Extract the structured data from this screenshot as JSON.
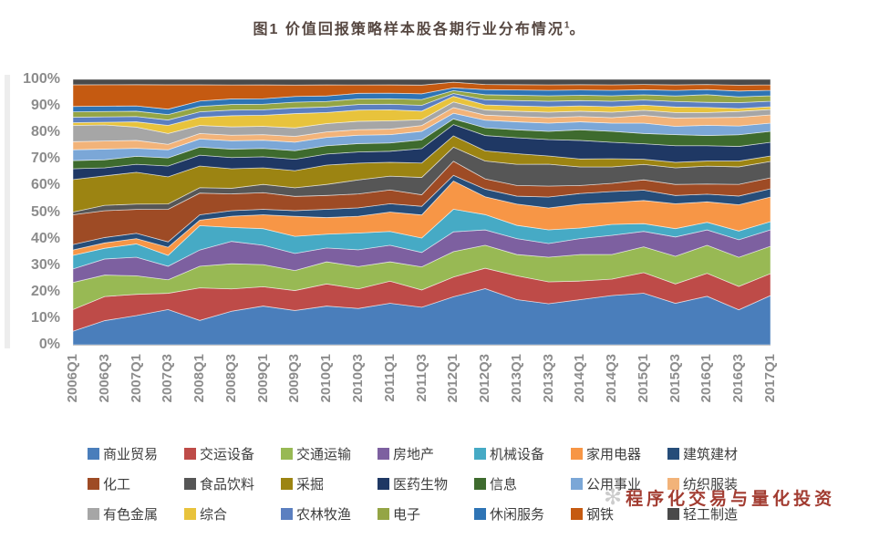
{
  "title": {
    "text": "图1 价值回报策略样本股各期行业分布情况",
    "sup": "1",
    "tail": "。"
  },
  "watermark": {
    "text": "程序化交易与量化投资",
    "color": "#9b2c20",
    "logo_icon": "sunburst-icon"
  },
  "colors": {
    "axis_text": "#8c8c8c",
    "legend_text": "#3d3d3d",
    "title_text": "#564741",
    "axis_line": "#c4c4c4",
    "background": "#ffffff"
  },
  "chart_data": {
    "type": "area",
    "stacking": "percent",
    "title": "图1 价值回报策略样本股各期行业分布情况",
    "xlabel": "",
    "ylabel": "",
    "ylim": [
      0,
      100
    ],
    "grid": false,
    "legend_position": "bottom",
    "y_ticks": [
      "100%",
      "90%",
      "80%",
      "70%",
      "60%",
      "50%",
      "40%",
      "30%",
      "20%",
      "10%",
      "0%"
    ],
    "categories": [
      "2006Q1",
      "2006Q3",
      "2007Q1",
      "2007Q3",
      "2008Q1",
      "2008Q3",
      "2009Q1",
      "2009Q3",
      "2010Q1",
      "2010Q3",
      "2011Q1",
      "2011Q3",
      "2012Q1",
      "2012Q3",
      "2013Q1",
      "2013Q3",
      "2014Q1",
      "2014Q3",
      "2015Q1",
      "2015Q3",
      "2016Q1",
      "2016Q3",
      "2017Q1"
    ],
    "series": [
      {
        "name": "商业贸易",
        "color": "#4A7EBB",
        "values": [
          5,
          9,
          11,
          13,
          9,
          12,
          14,
          12,
          14,
          13,
          15,
          13,
          17,
          22,
          17,
          15,
          17,
          18,
          20,
          15,
          19,
          12,
          18
        ]
      },
      {
        "name": "交运设备",
        "color": "#BE4B48",
        "values": [
          8,
          9,
          8,
          6,
          12,
          8,
          7,
          7,
          8,
          7,
          8,
          6,
          7,
          8,
          9,
          8,
          7,
          6,
          8,
          7,
          9,
          8,
          8
        ]
      },
      {
        "name": "交通运输",
        "color": "#98B954",
        "values": [
          10,
          8,
          7,
          5,
          8,
          9,
          8,
          7,
          8,
          8,
          7,
          8,
          9,
          9,
          8,
          9,
          10,
          9,
          10,
          10,
          11,
          10,
          10
        ]
      },
      {
        "name": "房地产",
        "color": "#7D60A0",
        "values": [
          5,
          6,
          7,
          5,
          6,
          8,
          7,
          6,
          5,
          6,
          6,
          5,
          7,
          6,
          6,
          5,
          6,
          7,
          6,
          7,
          6,
          6,
          6
        ]
      },
      {
        "name": "机械设备",
        "color": "#46AAC5",
        "values": [
          5,
          4,
          5,
          4,
          9,
          5,
          6,
          6,
          5,
          6,
          5,
          5,
          8,
          6,
          5,
          5,
          4,
          4,
          3,
          3,
          3,
          3,
          3
        ]
      },
      {
        "name": "家用电器",
        "color": "#F79646",
        "values": [
          2,
          2,
          2,
          3,
          2,
          4,
          5,
          7,
          6,
          6,
          7,
          8,
          10,
          7,
          8,
          8,
          9,
          8,
          9,
          9,
          8,
          9,
          9
        ]
      },
      {
        "name": "建筑建材",
        "color": "#264D79",
        "values": [
          2,
          2,
          2,
          2,
          2,
          2,
          2,
          2,
          3,
          3,
          3,
          3,
          2,
          3,
          3,
          4,
          4,
          4,
          4,
          3,
          3,
          3,
          3
        ]
      },
      {
        "name": "化工",
        "color": "#9E4B25",
        "values": [
          11,
          10,
          9,
          12,
          8,
          6,
          6,
          5,
          5,
          5,
          5,
          4,
          5,
          4,
          4,
          4,
          3,
          3,
          4,
          4,
          4,
          4,
          4
        ]
      },
      {
        "name": "食品饮料",
        "color": "#565656",
        "values": [
          1,
          2,
          2,
          2,
          2,
          2,
          3,
          3,
          4,
          5,
          5,
          6,
          5,
          7,
          8,
          8,
          7,
          6,
          6,
          6,
          7,
          6,
          6
        ]
      },
      {
        "name": "采掘",
        "color": "#9C8412",
        "values": [
          12,
          11,
          12,
          10,
          8,
          7,
          6,
          6,
          7,
          6,
          5,
          5,
          4,
          4,
          4,
          3,
          3,
          3,
          2,
          2,
          2,
          2,
          2
        ]
      },
      {
        "name": "医药生物",
        "color": "#1F3864",
        "values": [
          4,
          3,
          3,
          4,
          4,
          4,
          4,
          4,
          4,
          4,
          4,
          5,
          4,
          6,
          6,
          6,
          7,
          6,
          6,
          6,
          6,
          5,
          5
        ]
      },
      {
        "name": "信息",
        "color": "#3E6B2E",
        "values": [
          3,
          3,
          3,
          3,
          3,
          3,
          3,
          3,
          3,
          3,
          3,
          3,
          2,
          3,
          3,
          3,
          4,
          4,
          4,
          4,
          4,
          4,
          4
        ]
      },
      {
        "name": "公用事业",
        "color": "#7BA7D7",
        "values": [
          4,
          4,
          3,
          3,
          3,
          3,
          3,
          3,
          3,
          3,
          3,
          3,
          2,
          3,
          3,
          3,
          3,
          3,
          4,
          3,
          4,
          3,
          3
        ]
      },
      {
        "name": "纺织服装",
        "color": "#F2B379",
        "values": [
          3,
          3,
          3,
          2,
          2,
          2,
          2,
          2,
          2,
          2,
          2,
          2,
          2,
          2,
          2,
          2,
          2,
          2,
          3,
          3,
          3,
          3,
          3
        ]
      },
      {
        "name": "有色金属",
        "color": "#A6A6A6",
        "values": [
          6,
          6,
          5,
          4,
          3,
          3,
          3,
          3,
          3,
          3,
          3,
          2,
          2,
          2,
          2,
          2,
          2,
          2,
          2,
          2,
          2,
          2,
          2
        ]
      },
      {
        "name": "综合",
        "color": "#E8C33C",
        "values": [
          1,
          1,
          2,
          3,
          3,
          4,
          4,
          5,
          4,
          4,
          4,
          3,
          2,
          2,
          2,
          2,
          2,
          2,
          2,
          2,
          2,
          1,
          1
        ]
      },
      {
        "name": "农林牧渔",
        "color": "#5B7FC0",
        "values": [
          2,
          2,
          2,
          2,
          2,
          2,
          2,
          2,
          2,
          2,
          2,
          2,
          1,
          2,
          2,
          2,
          2,
          2,
          2,
          2,
          2,
          2,
          2
        ]
      },
      {
        "name": "电子",
        "color": "#94A545",
        "values": [
          2,
          2,
          2,
          2,
          2,
          2,
          2,
          2,
          2,
          2,
          2,
          2,
          1,
          2,
          2,
          2,
          2,
          2,
          2,
          2,
          3,
          2,
          2
        ]
      },
      {
        "name": "休闲服务",
        "color": "#2E74B5",
        "values": [
          2,
          2,
          2,
          2,
          2,
          2,
          2,
          2,
          2,
          2,
          2,
          2,
          1,
          2,
          2,
          2,
          2,
          2,
          2,
          2,
          2,
          2,
          2
        ]
      },
      {
        "name": "钢铁",
        "color": "#C55A11",
        "values": [
          8,
          8,
          8,
          9,
          6,
          5,
          5,
          4,
          4,
          3,
          3,
          3,
          2,
          2,
          2,
          2,
          2,
          2,
          2,
          2,
          2,
          2,
          2
        ]
      },
      {
        "name": "轻工制造",
        "color": "#4A4A4A",
        "values": [
          2,
          2,
          2,
          2,
          2,
          2,
          2,
          2,
          2,
          2,
          2,
          2,
          1,
          2,
          2,
          2,
          2,
          2,
          2,
          2,
          2,
          2,
          2
        ]
      }
    ]
  }
}
